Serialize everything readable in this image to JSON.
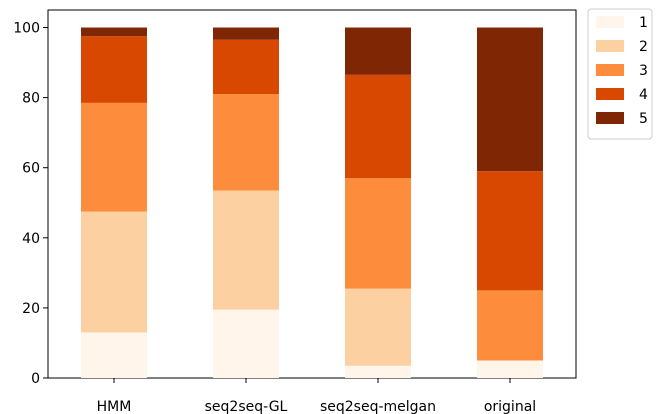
{
  "chart_data": {
    "type": "bar",
    "stacked": true,
    "categories": [
      "HMM",
      "seq2seq-GL",
      "seq2seq-melgan",
      "original"
    ],
    "series": [
      {
        "name": "1",
        "color": "#fff5eb",
        "values": [
          13,
          19.5,
          3.5,
          5
        ]
      },
      {
        "name": "2",
        "color": "#fdd0a2",
        "values": [
          34.5,
          34,
          22,
          0
        ]
      },
      {
        "name": "3",
        "color": "#fd8d3c",
        "values": [
          31,
          27.5,
          31.5,
          20
        ]
      },
      {
        "name": "4",
        "color": "#d94801",
        "values": [
          19,
          15.5,
          29.5,
          34
        ]
      },
      {
        "name": "5",
        "color": "#7f2704",
        "values": [
          2.5,
          3.5,
          13.5,
          41
        ]
      }
    ],
    "yticks": [
      0,
      20,
      40,
      60,
      80,
      100
    ],
    "ylim": [
      0,
      105
    ],
    "grid": false,
    "legend": "outside-top-right"
  }
}
